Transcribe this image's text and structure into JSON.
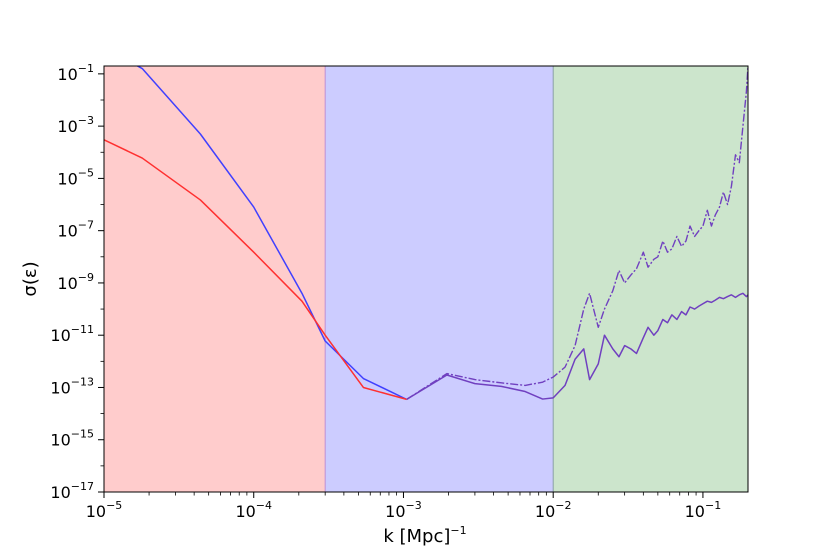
{
  "chart_data": {
    "type": "line",
    "title": "",
    "xlabel": "k [Mpc]",
    "xlabel_exp": "−1",
    "ylabel": "σ(ε)",
    "xscale": "log",
    "yscale": "log",
    "xlim": [
      1e-05,
      0.2
    ],
    "ylim": [
      1e-17,
      0.2
    ],
    "grid": false,
    "x_ticks": [
      {
        "value": 1e-05,
        "base": "10",
        "exp": "−5"
      },
      {
        "value": 0.0001,
        "base": "10",
        "exp": "−4"
      },
      {
        "value": 0.001,
        "base": "10",
        "exp": "−3"
      },
      {
        "value": 0.01,
        "base": "10",
        "exp": "−2"
      },
      {
        "value": 0.1,
        "base": "10",
        "exp": "−1"
      }
    ],
    "y_ticks": [
      {
        "value": 1e-17,
        "base": "10",
        "exp": "−17"
      },
      {
        "value": 1e-15,
        "base": "10",
        "exp": "−15"
      },
      {
        "value": 1e-13,
        "base": "10",
        "exp": "−13"
      },
      {
        "value": 1e-11,
        "base": "10",
        "exp": "−11"
      },
      {
        "value": 1e-09,
        "base": "10",
        "exp": "−9"
      },
      {
        "value": 1e-07,
        "base": "10",
        "exp": "−7"
      },
      {
        "value": 1e-05,
        "base": "10",
        "exp": "−5"
      },
      {
        "value": 0.001,
        "base": "10",
        "exp": "−3"
      },
      {
        "value": 0.1,
        "base": "10",
        "exp": "−1"
      }
    ],
    "regions": [
      {
        "x0": 1e-05,
        "x1": 0.0003,
        "color": "#ffcccc"
      },
      {
        "x0": 0.0003,
        "x1": 0.01,
        "color": "#ccccff"
      },
      {
        "x0": 0.01,
        "x1": 0.2,
        "color": "#cce5cc"
      }
    ],
    "series": [
      {
        "color": "#4040ff",
        "style": "solid",
        "x": [
          1e-05,
          1.8e-05,
          4.4e-05,
          0.0001,
          0.00021,
          0.0003,
          0.00054,
          0.00105
        ],
        "y": [
          1.0,
          0.16,
          0.0005,
          8e-07,
          4e-10,
          6e-12,
          2.2e-13,
          3.5e-14
        ]
      },
      {
        "color": "#ff3030",
        "style": "solid",
        "x": [
          1e-05,
          1.8e-05,
          4.4e-05,
          0.0001,
          0.00021,
          0.0003,
          0.00054,
          0.00105
        ],
        "y": [
          0.0003,
          6e-05,
          1.5e-06,
          1.5e-08,
          2e-10,
          1e-11,
          1e-13,
          3.5e-14
        ]
      },
      {
        "color": "#7040c0",
        "style": "dashdot",
        "x": [
          0.00105,
          0.00195,
          0.003,
          0.0045,
          0.0065,
          0.0085,
          0.01,
          0.012,
          0.014,
          0.016,
          0.0175,
          0.02,
          0.022,
          0.025,
          0.0275,
          0.03,
          0.033,
          0.036,
          0.04,
          0.043,
          0.047,
          0.05,
          0.054,
          0.058,
          0.062,
          0.067,
          0.072,
          0.077,
          0.082,
          0.088,
          0.094,
          0.1,
          0.107,
          0.114,
          0.121,
          0.129,
          0.137,
          0.146,
          0.155,
          0.165,
          0.175,
          0.185,
          0.195,
          0.2
        ],
        "y": [
          3.5e-14,
          3.4e-13,
          2e-13,
          1.5e-13,
          1.2e-13,
          1.6e-13,
          2.5e-13,
          6e-13,
          4e-12,
          1e-10,
          4e-10,
          2e-11,
          1e-10,
          5e-10,
          3e-09,
          1e-09,
          2e-09,
          3.5e-09,
          1.5e-08,
          4e-09,
          8e-09,
          1e-08,
          4e-08,
          1.5e-08,
          2e-08,
          6e-08,
          2.5e-08,
          4e-08,
          1.5e-07,
          6e-08,
          1e-07,
          1.5e-07,
          6e-07,
          1.5e-07,
          4e-07,
          8e-07,
          3e-06,
          1e-06,
          5e-06,
          8e-05,
          4e-05,
          0.001,
          0.02,
          0.2
        ]
      },
      {
        "color": "#7040c0",
        "style": "solid",
        "x": [
          0.00105,
          0.00195,
          0.003,
          0.0045,
          0.0065,
          0.0085,
          0.01,
          0.012,
          0.014,
          0.016,
          0.0175,
          0.02,
          0.022,
          0.025,
          0.0275,
          0.03,
          0.033,
          0.036,
          0.04,
          0.043,
          0.047,
          0.05,
          0.054,
          0.058,
          0.062,
          0.067,
          0.072,
          0.077,
          0.082,
          0.088,
          0.094,
          0.1,
          0.107,
          0.114,
          0.121,
          0.129,
          0.137,
          0.146,
          0.155,
          0.165,
          0.175,
          0.185,
          0.195,
          0.2
        ],
        "y": [
          3.5e-14,
          3e-13,
          1.4e-13,
          1.1e-13,
          7e-14,
          3.6e-14,
          4e-14,
          1.2e-13,
          1.2e-12,
          3e-12,
          2e-13,
          8e-13,
          1e-11,
          3e-12,
          1.5e-12,
          4e-12,
          3e-12,
          2e-12,
          8e-12,
          2e-11,
          1e-11,
          1.5e-11,
          4e-11,
          3e-11,
          6e-11,
          4e-11,
          8e-11,
          6e-11,
          1.2e-10,
          1e-10,
          1.3e-10,
          1.6e-10,
          2e-10,
          1.8e-10,
          2.2e-10,
          2.8e-10,
          2.5e-10,
          3e-10,
          3.5e-10,
          2.8e-10,
          3.5e-10,
          4e-10,
          3e-10,
          3.5e-10
        ]
      }
    ]
  }
}
